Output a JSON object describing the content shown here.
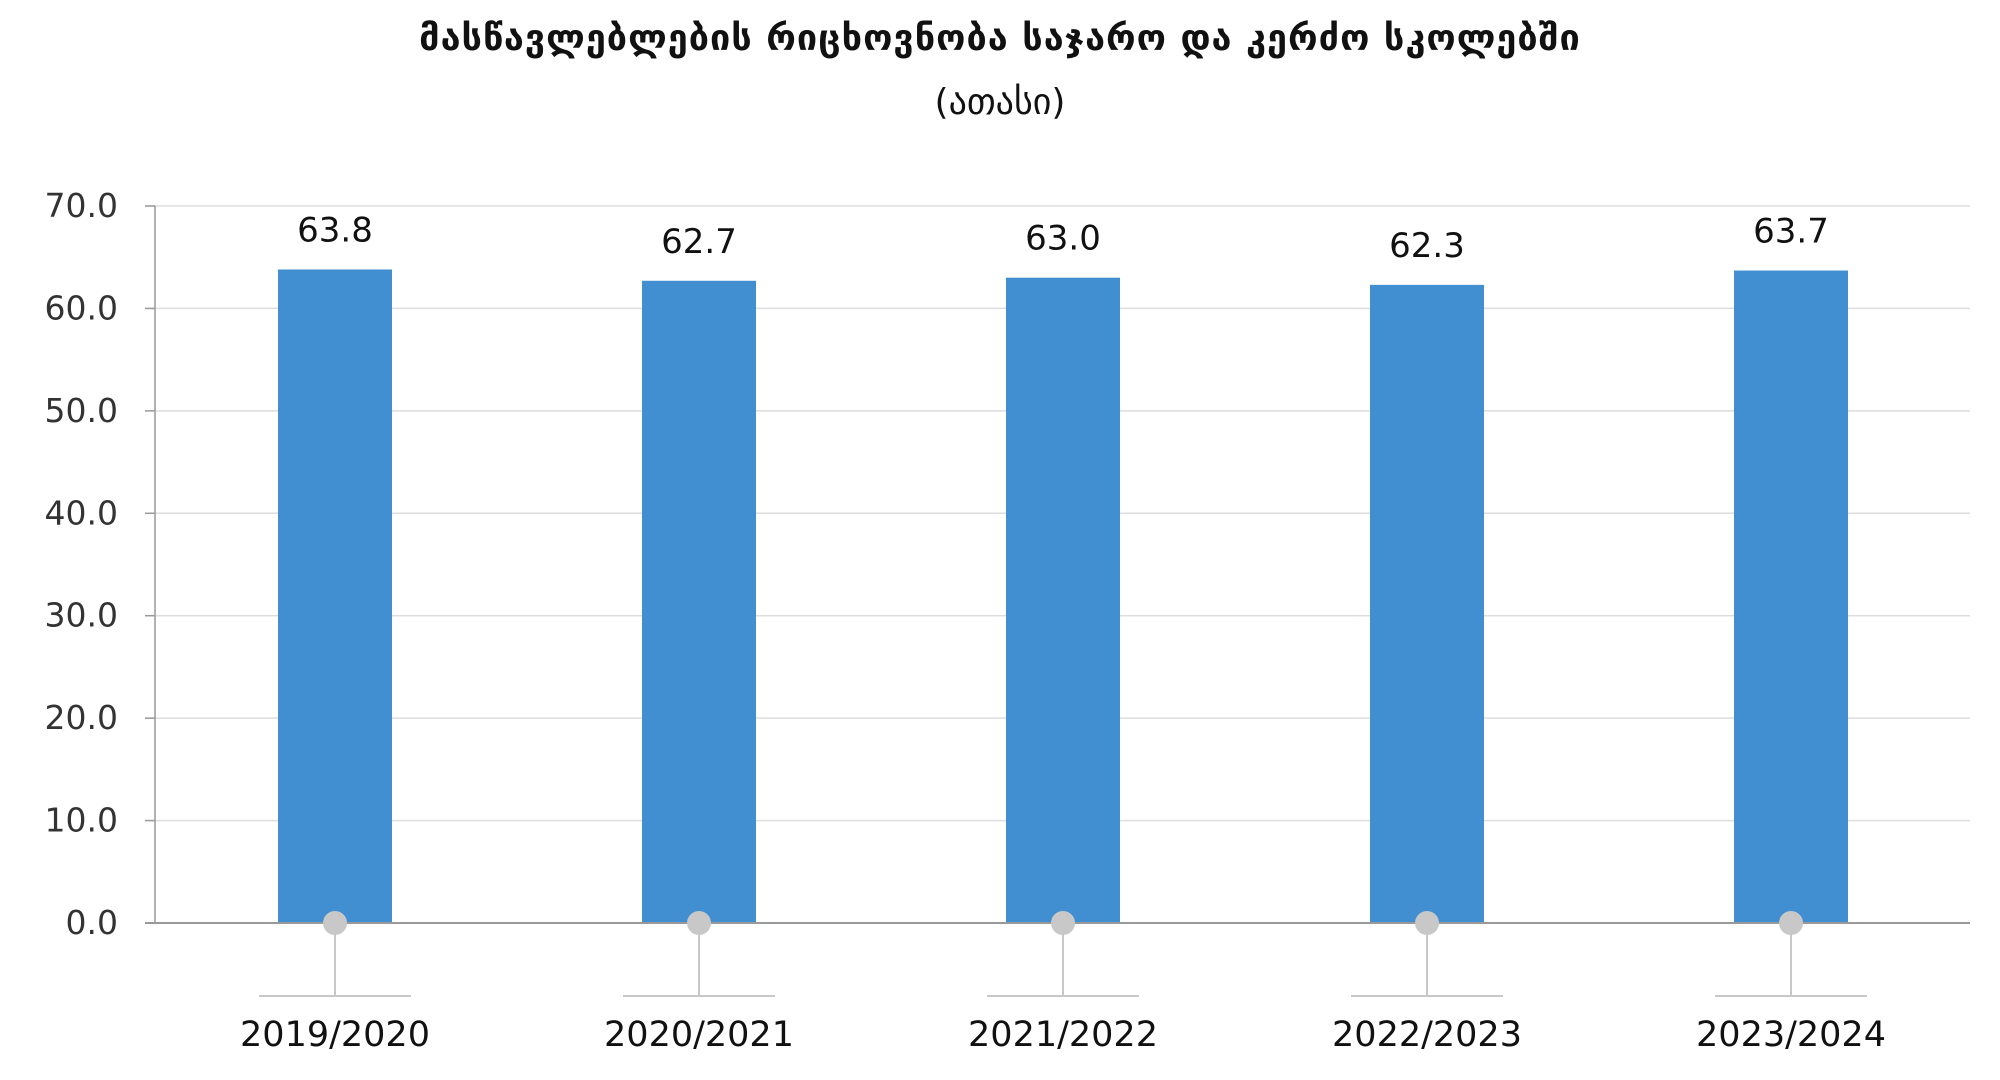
{
  "chart_data": {
    "type": "bar",
    "title": "მასწავლებლების რიცხოვნობა საჯარო და კერძო სკოლებში",
    "subtitle": "(ათასი)",
    "categories": [
      "2019/2020",
      "2020/2021",
      "2021/2022",
      "2022/2023",
      "2023/2024"
    ],
    "values": [
      63.8,
      62.7,
      63.0,
      62.3,
      63.7
    ],
    "data_labels": [
      "63.8",
      "62.7",
      "63.0",
      "62.3",
      "63.7"
    ],
    "ylim": [
      0,
      70
    ],
    "yticks": [
      "0.0",
      "10.0",
      "20.0",
      "30.0",
      "40.0",
      "50.0",
      "60.0",
      "70.0"
    ],
    "ytick_values": [
      0,
      10,
      20,
      30,
      40,
      50,
      60,
      70
    ],
    "grid": true,
    "legend": "none",
    "colors": {
      "bar": "#418FD0",
      "grid": "#DDDDDD",
      "axis": "#999999",
      "marker": "#C8C8C8"
    }
  }
}
